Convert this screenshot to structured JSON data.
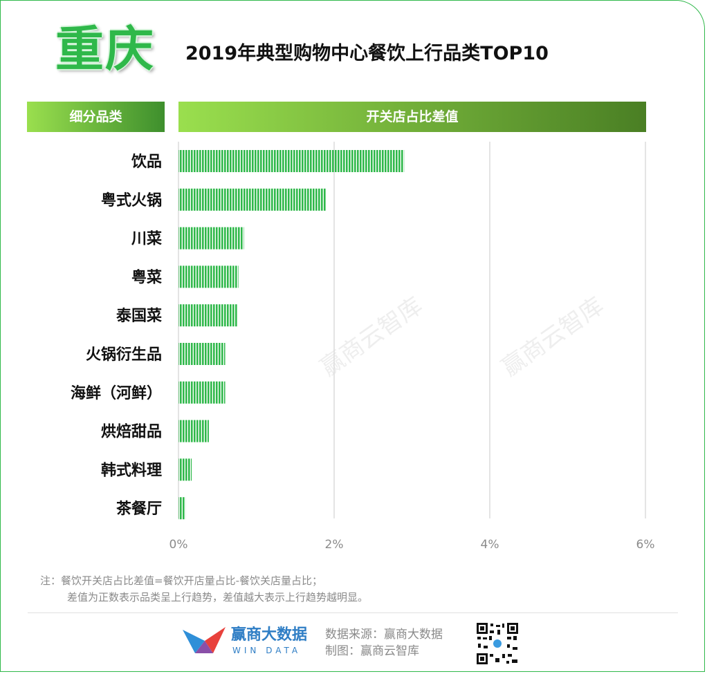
{
  "city": "重庆",
  "title": "2019年典型购物中心餐饮上行品类TOP10",
  "header_left": "细分品类",
  "header_right": "开关店占比差值",
  "watermark": "赢商云智库",
  "colors": {
    "bar": "#2fb84a",
    "accent": "#2fb84a",
    "grid": "#dcdcdc"
  },
  "chart_data": {
    "type": "bar",
    "orientation": "horizontal",
    "categories": [
      "饮品",
      "粤式火锅",
      "川菜",
      "粤菜",
      "泰国菜",
      "火锅衍生品",
      "海鲜（河鲜）",
      "烘焙甜品",
      "韩式料理",
      "茶餐厅"
    ],
    "values": [
      2.9,
      1.9,
      0.84,
      0.77,
      0.76,
      0.6,
      0.6,
      0.39,
      0.17,
      0.09
    ],
    "unit": "%",
    "xlim": [
      0,
      6
    ],
    "ticks": [
      "0%",
      "2%",
      "4%",
      "6%"
    ],
    "tick_values": [
      0,
      2,
      4,
      6
    ],
    "grid": true,
    "legend": "none"
  },
  "note_line1": "注：餐饮开关店占比差值=餐饮开店量占比-餐饮关店量占比；",
  "note_line2": "差值为正数表示品类呈上行趋势，差值越大表示上行趋势越明显。",
  "footer": {
    "brand_cn": "赢商大数据",
    "brand_en": "WIN DATA",
    "source": "数据来源：赢商大数据",
    "maker": "制图：赢商云智库"
  }
}
